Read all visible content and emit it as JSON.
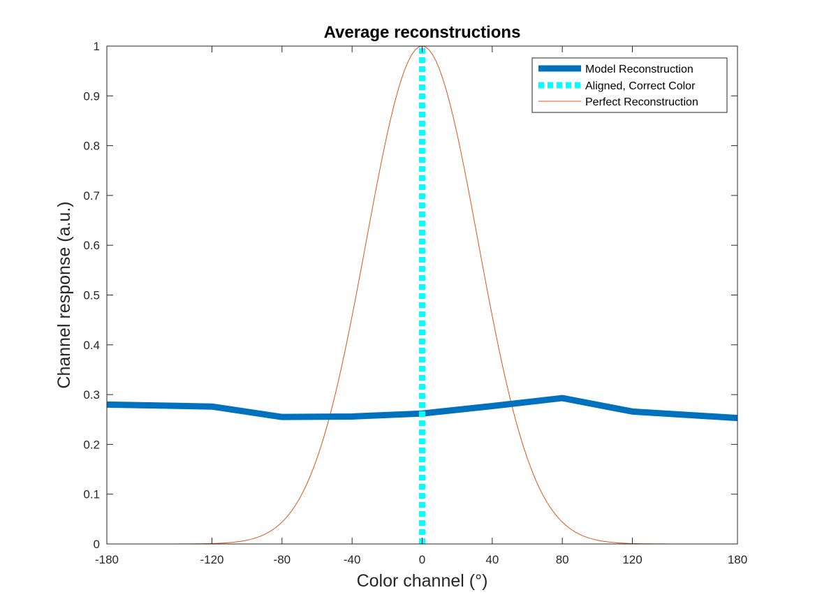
{
  "chart_data": {
    "type": "line",
    "title": "Average reconstructions",
    "xlabel": "Color channel (°)",
    "ylabel": "Channel response (a.u.)",
    "xlim": [
      -180,
      180
    ],
    "ylim": [
      0,
      1
    ],
    "xticks": [
      -180,
      -120,
      -80,
      -40,
      0,
      40,
      80,
      120,
      180
    ],
    "yticks": [
      0,
      0.1,
      0.2,
      0.3,
      0.4,
      0.5,
      0.6,
      0.7,
      0.8,
      0.9,
      1
    ],
    "grid": false,
    "legend_position": "top-right",
    "series": [
      {
        "name": "Model Reconstruction",
        "color": "#0072BD",
        "style": "solid-thick",
        "x": [
          -180,
          -120,
          -80,
          -40,
          0,
          40,
          80,
          120,
          180
        ],
        "y": [
          0.28,
          0.276,
          0.255,
          0.256,
          0.262,
          0.277,
          0.293,
          0.266,
          0.253
        ]
      },
      {
        "name": "Aligned, Correct Color",
        "color": "#00FFFF",
        "style": "dotted-thick",
        "x": [
          0,
          0
        ],
        "y": [
          0,
          1
        ]
      },
      {
        "name": "Perfect Reconstruction",
        "color": "#D95319",
        "style": "solid-thin",
        "curve": "gaussian",
        "center": 0,
        "sigma": 32,
        "peak": 1
      }
    ]
  }
}
